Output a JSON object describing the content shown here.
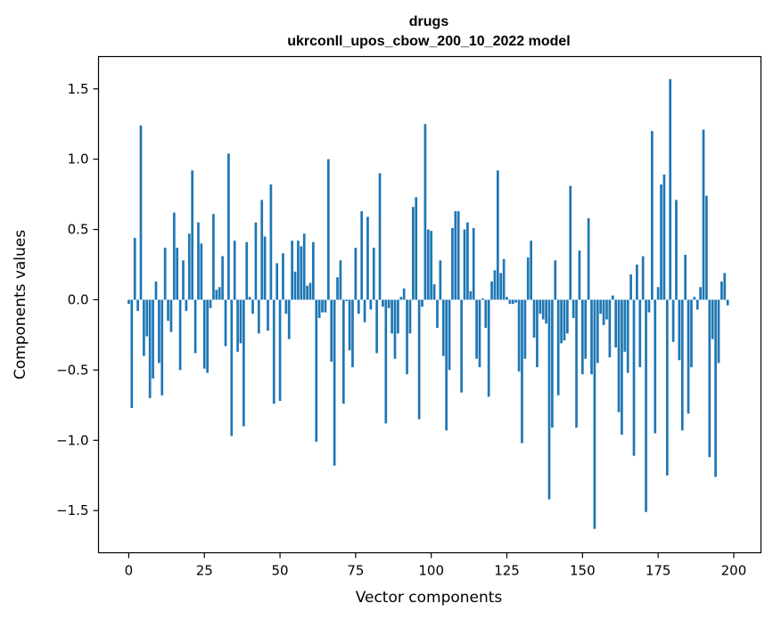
{
  "chart_data": {
    "type": "bar",
    "title": "drugs",
    "subtitle": "ukrconll_upos_cbow_200_10_2022 model",
    "xlabel": "Vector components",
    "ylabel": "Components values",
    "xlim": [
      -10,
      209
    ],
    "ylim": [
      -1.8,
      1.73
    ],
    "xticks": [
      0,
      25,
      50,
      75,
      100,
      125,
      150,
      175,
      200
    ],
    "yticks": [
      -1.5,
      -1.0,
      -0.5,
      0.0,
      0.5,
      1.0,
      1.5
    ],
    "ytick_labels": [
      "−1.5",
      "−1.0",
      "−0.5",
      "0.0",
      "0.5",
      "1.0",
      "1.5"
    ],
    "grid": false,
    "bar_color": "#1f77b4",
    "values": [
      -0.03,
      -0.77,
      0.44,
      -0.08,
      1.24,
      -0.4,
      -0.26,
      -0.7,
      -0.56,
      0.13,
      -0.45,
      -0.68,
      0.37,
      -0.15,
      -0.23,
      0.62,
      0.37,
      -0.5,
      0.28,
      -0.08,
      0.47,
      0.92,
      -0.38,
      0.55,
      0.4,
      -0.49,
      -0.52,
      -0.06,
      0.61,
      0.07,
      0.09,
      0.31,
      -0.33,
      1.04,
      -0.97,
      0.42,
      -0.37,
      -0.31,
      -0.9,
      0.41,
      0.02,
      -0.1,
      0.55,
      -0.24,
      0.71,
      0.45,
      -0.22,
      0.82,
      -0.74,
      0.26,
      -0.72,
      0.33,
      -0.1,
      -0.28,
      0.42,
      0.2,
      0.42,
      0.38,
      0.47,
      0.1,
      0.12,
      0.41,
      -1.01,
      -0.13,
      -0.09,
      -0.09,
      1.0,
      -0.44,
      -1.18,
      0.16,
      0.28,
      -0.74,
      -0.01,
      -0.36,
      -0.48,
      0.37,
      -0.1,
      0.63,
      -0.16,
      0.59,
      -0.07,
      0.37,
      -0.38,
      0.9,
      -0.05,
      -0.88,
      -0.06,
      -0.24,
      -0.42,
      -0.24,
      0.02,
      0.08,
      -0.53,
      -0.24,
      0.66,
      0.73,
      -0.85,
      -0.05,
      1.25,
      0.5,
      0.49,
      0.11,
      -0.2,
      0.28,
      -0.4,
      -0.93,
      -0.5,
      0.51,
      0.63,
      0.63,
      -0.66,
      0.5,
      0.55,
      0.06,
      0.51,
      -0.42,
      -0.48,
      0.01,
      -0.2,
      -0.69,
      0.13,
      0.21,
      0.92,
      0.19,
      0.29,
      0.02,
      -0.03,
      -0.03,
      -0.02,
      -0.51,
      -1.02,
      -0.42,
      0.3,
      0.42,
      -0.27,
      -0.48,
      -0.1,
      -0.14,
      -0.17,
      -1.42,
      -0.91,
      0.28,
      -0.68,
      -0.31,
      -0.29,
      -0.24,
      0.81,
      -0.13,
      -0.91,
      0.35,
      -0.53,
      -0.42,
      0.58,
      -0.53,
      -1.63,
      -0.45,
      -0.1,
      -0.18,
      -0.14,
      -0.41,
      0.03,
      -0.34,
      -0.8,
      -0.96,
      -0.37,
      -0.52,
      0.18,
      -1.11,
      0.25,
      -0.48,
      0.31,
      -1.51,
      -0.09,
      1.2,
      -0.95,
      0.09,
      0.82,
      0.89,
      -1.25,
      1.57,
      -0.3,
      0.71,
      -0.43,
      -0.93,
      0.32,
      -0.81,
      -0.48,
      0.02,
      -0.07,
      0.09,
      1.21,
      0.74,
      -1.12,
      -0.28,
      -1.26,
      -0.45,
      0.13,
      0.19,
      -0.04
    ]
  }
}
